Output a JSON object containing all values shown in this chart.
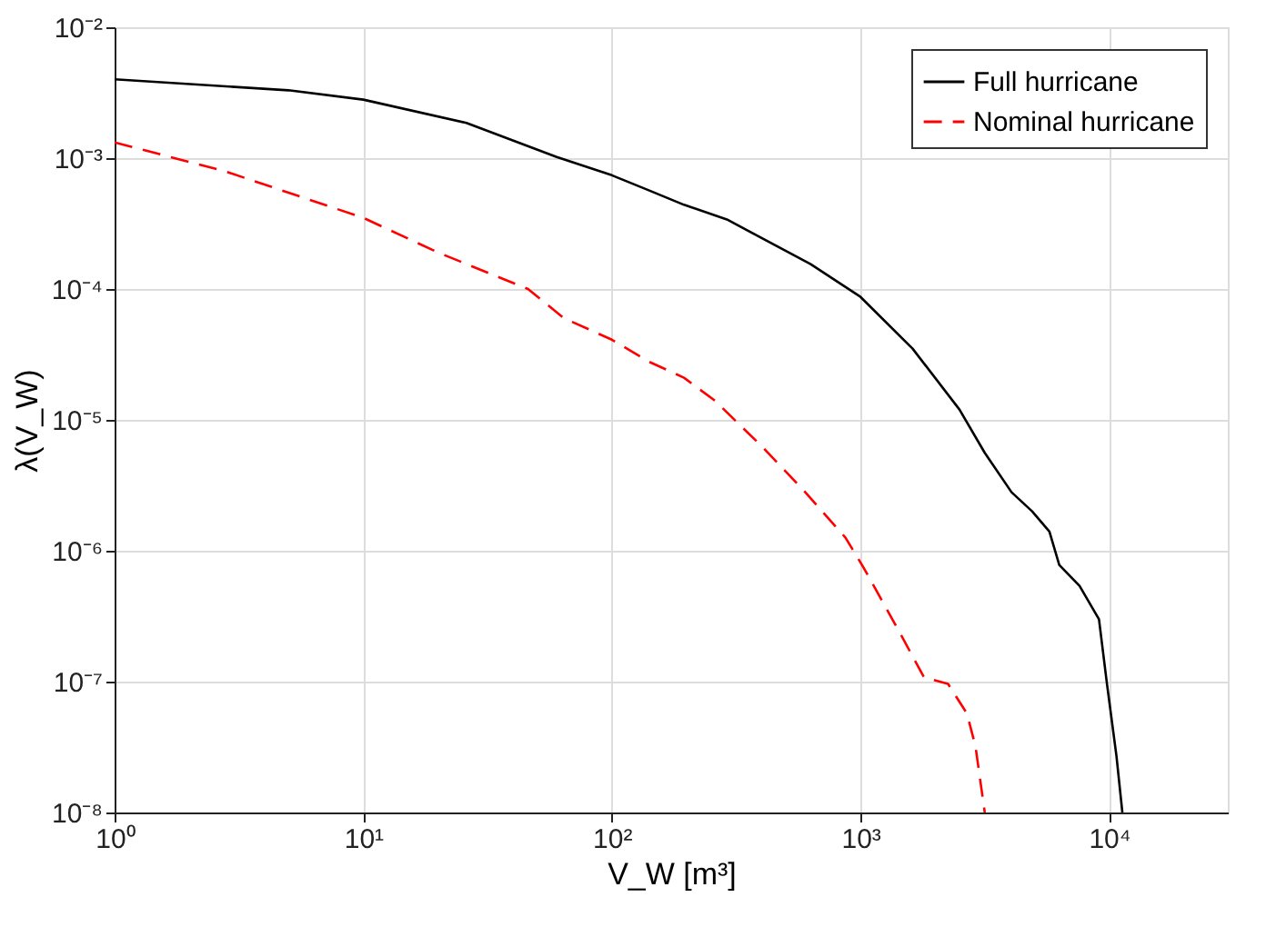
{
  "chart_data": {
    "type": "line",
    "xlabel": "V_W [m³]",
    "ylabel": "λ(V_W)",
    "log": "xy",
    "grid": true,
    "legend": "top right",
    "marker": "none",
    "xlim": [
      1,
      30000
    ],
    "xticks": [
      {
        "value": 1,
        "label": "10⁰"
      },
      {
        "value": 10,
        "label": "10¹"
      },
      {
        "value": 100,
        "label": "10²"
      },
      {
        "value": 1000,
        "label": "10³"
      },
      {
        "value": 10000,
        "label": "10⁴"
      }
    ],
    "ylim": [
      1e-08,
      0.01
    ],
    "yticks": [
      {
        "value": 1e-08,
        "label": "10⁻⁸"
      },
      {
        "value": 1e-07,
        "label": "10⁻⁷"
      },
      {
        "value": 1e-06,
        "label": "10⁻⁶"
      },
      {
        "value": 1e-05,
        "label": "10⁻⁵"
      },
      {
        "value": 0.0001,
        "label": "10⁻⁴"
      },
      {
        "value": 0.001,
        "label": "10⁻³"
      },
      {
        "value": 0.01,
        "label": "10⁻²"
      }
    ],
    "series": [
      {
        "name": "Full hurricane",
        "color": "#000000",
        "line_style": "solid",
        "x": [
          1,
          5,
          10,
          26,
          60,
          100,
          140,
          195,
          290,
          630,
          1000,
          1620,
          2500,
          3160,
          4050,
          4900,
          5750,
          6300,
          7600,
          9100,
          9800,
          10700,
          11300
        ],
        "values": [
          0.004,
          0.0033,
          0.0028,
          0.00186,
          0.00102,
          0.00074,
          0.00057,
          0.00044,
          0.00034,
          0.000155,
          8.7e-05,
          3.5e-05,
          1.2e-05,
          5.6e-06,
          2.8e-06,
          2e-06,
          1.4e-06,
          7.8e-07,
          5.4e-07,
          3e-07,
          9.6e-08,
          2.7e-08,
          1e-08
        ]
      },
      {
        "name": "Nominal hurricane",
        "color": "#ff0000",
        "line_style": "dashed",
        "x": [
          1,
          2.8,
          10,
          20,
          46,
          64,
          100,
          140,
          195,
          260,
          400,
          590,
          870,
          1030,
          1450,
          1800,
          2250,
          2680,
          2900,
          3160
        ],
        "values": [
          0.00132,
          0.00079,
          0.00035,
          0.00019,
          0.0001,
          6e-05,
          4.1e-05,
          2.8e-05,
          2.1e-05,
          1.4e-05,
          6.3e-06,
          2.9e-06,
          1.26e-06,
          7.4e-07,
          2.3e-07,
          1.08e-07,
          9.6e-08,
          5.7e-08,
          3.2e-08,
          1e-08
        ]
      }
    ]
  }
}
